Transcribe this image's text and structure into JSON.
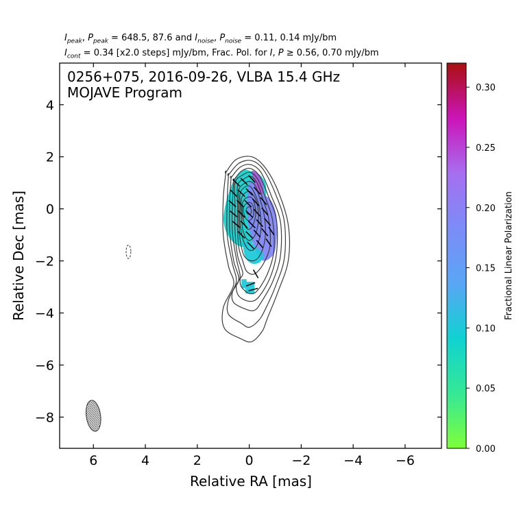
{
  "header": {
    "line1": {
      "i_peak_sym": "I",
      "i_peak_sub": "peak",
      "p_peak_sym": "P",
      "p_peak_sub": "peak",
      "peak_values": "648.5, 87.6",
      "i_noise_sym": "I",
      "i_noise_sub": "noise",
      "p_noise_sym": "P",
      "p_noise_sub": "noise",
      "noise_values": "0.11, 0.14 mJy/bm",
      "sep": ", ",
      "eq": " = ",
      "and": " and "
    },
    "line2": {
      "i_cont_sym": "I",
      "i_cont_sub": "cont",
      "cont_text": " = 0.34 [x2.0 steps] mJy/bm, Frac. Pol. for ",
      "i_sym": "I",
      "p_sym": "P",
      "frac_tail": " ≥ 0.56, 0.70 mJy/bm"
    }
  },
  "chart_data": {
    "type": "heatmap",
    "title_line1": "0256+075, 2016-09-26, VLBA 15.4 GHz",
    "title_line2": "MOJAVE Program",
    "xlabel": "Relative RA [mas]",
    "ylabel": "Relative Dec [mas]",
    "xlim": [
      7.3,
      -7.4
    ],
    "ylim": [
      -9.2,
      5.6
    ],
    "x_ticks": [
      6,
      4,
      2,
      0,
      -2,
      -4,
      -6
    ],
    "y_ticks": [
      4,
      2,
      0,
      -2,
      -4,
      -6,
      -8
    ],
    "x_tick_labels": [
      "6",
      "4",
      "2",
      "0",
      "−2",
      "−4",
      "−6"
    ],
    "y_tick_labels": [
      "4",
      "2",
      "0",
      "−2",
      "−4",
      "−6",
      "−8"
    ],
    "colorbar": {
      "label": "Fractional Linear Polarization",
      "range": [
        0.0,
        0.32
      ],
      "ticks": [
        0.0,
        0.05,
        0.1,
        0.15,
        0.2,
        0.25,
        0.3
      ],
      "tick_labels": [
        "0.00",
        "0.05",
        "0.10",
        "0.15",
        "0.20",
        "0.25",
        "0.30"
      ],
      "colors": [
        "#7fff3a",
        "#35e895",
        "#10d2d2",
        "#5aa6f5",
        "#7c8cf8",
        "#a66ff0",
        "#cc14b8",
        "#aa0f0f"
      ]
    },
    "contours": [
      {
        "level": 1,
        "x": [
          0.9,
          0.5,
          -0.1,
          -0.6,
          -1.1,
          -1.5,
          -1.5,
          -1.1,
          -0.7,
          -0.5,
          -0.1,
          0.3,
          0.95,
          1.0,
          0.6,
          0.8,
          1.0,
          1.0,
          0.9
        ],
        "y": [
          1.4,
          1.9,
          2.0,
          1.6,
          0.7,
          -0.6,
          -2.0,
          -3.2,
          -4.2,
          -4.7,
          -5.1,
          -5.0,
          -4.6,
          -3.8,
          -2.9,
          -2.2,
          -1.0,
          0.4,
          1.4
        ]
      },
      {
        "level": 2,
        "x": [
          0.8,
          0.4,
          -0.1,
          -0.55,
          -1.0,
          -1.35,
          -1.35,
          -1.0,
          -0.6,
          -0.35,
          0.0,
          0.3,
          0.8,
          0.8,
          0.5,
          0.65,
          0.85,
          0.85,
          0.8
        ],
        "y": [
          1.3,
          1.75,
          1.85,
          1.5,
          0.6,
          -0.5,
          -1.9,
          -3.0,
          -3.9,
          -4.3,
          -4.55,
          -4.4,
          -4.05,
          -3.5,
          -2.8,
          -2.1,
          -1.0,
          0.3,
          1.3
        ]
      },
      {
        "level": 3,
        "x": [
          0.7,
          0.35,
          -0.05,
          -0.45,
          -0.85,
          -1.2,
          -1.2,
          -0.9,
          -0.45,
          -0.2,
          0.15,
          0.6,
          0.65,
          0.4,
          0.6,
          0.75,
          0.75,
          0.7
        ],
        "y": [
          1.2,
          1.6,
          1.7,
          1.4,
          0.5,
          -0.5,
          -1.8,
          -2.8,
          -3.6,
          -3.9,
          -3.85,
          -3.6,
          -3.2,
          -2.7,
          -2.0,
          -0.9,
          0.3,
          1.2
        ]
      },
      {
        "level": 4,
        "x": [
          0.6,
          0.3,
          -0.05,
          -0.4,
          -0.75,
          -1.05,
          -1.05,
          -0.8,
          -0.35,
          0.0,
          0.4,
          0.5,
          0.35,
          0.5,
          0.65,
          0.65,
          0.6
        ],
        "y": [
          1.1,
          1.45,
          1.55,
          1.25,
          0.45,
          -0.45,
          -1.7,
          -2.65,
          -3.4,
          -3.55,
          -3.35,
          -2.95,
          -2.6,
          -1.9,
          -0.9,
          0.2,
          1.1
        ]
      },
      {
        "level": 5,
        "x": [
          0.55,
          0.25,
          -0.05,
          -0.35,
          -0.65,
          -0.9,
          -0.95,
          -0.7,
          -0.3,
          0.0,
          0.3,
          0.35,
          0.25,
          0.45,
          0.55,
          0.55
        ],
        "y": [
          1.0,
          1.3,
          1.4,
          1.1,
          0.35,
          -0.45,
          -1.6,
          -2.5,
          -3.15,
          -3.25,
          -3.0,
          -2.7,
          -2.45,
          -1.8,
          -0.85,
          0.1
        ]
      },
      {
        "level": 6,
        "x": [
          0.45,
          0.2,
          -0.05,
          -0.3,
          -0.55,
          -0.75,
          -0.8,
          -0.55,
          -0.2,
          0.1,
          0.25,
          0.4,
          0.45,
          0.45
        ],
        "y": [
          0.9,
          1.15,
          1.25,
          1.0,
          0.3,
          -0.4,
          -1.4,
          -2.1,
          -2.5,
          -2.4,
          -2.0,
          -1.5,
          -0.8,
          0.1
        ]
      },
      {
        "level": 7,
        "x": [
          0.4,
          0.15,
          -0.05,
          -0.25,
          -0.45,
          -0.6,
          -0.6,
          -0.4,
          -0.1,
          0.2,
          0.35,
          0.4,
          0.4
        ],
        "y": [
          0.75,
          1.0,
          1.05,
          0.85,
          0.25,
          -0.4,
          -1.2,
          -1.8,
          -2.0,
          -1.8,
          -1.2,
          -0.5,
          0.2
        ]
      },
      {
        "level": 8,
        "x": [
          0.35,
          0.15,
          -0.05,
          -0.25,
          -0.4,
          -0.45,
          -0.3,
          -0.05,
          0.2,
          0.35,
          0.35
        ],
        "y": [
          0.6,
          0.85,
          0.85,
          0.5,
          0.0,
          -0.8,
          -1.4,
          -1.6,
          -1.3,
          -0.6,
          0.1
        ]
      },
      {
        "level": 9,
        "x": [
          0.3,
          0.1,
          -0.1,
          -0.3,
          -0.35,
          -0.2,
          0.05,
          0.25,
          0.3
        ],
        "y": [
          0.4,
          0.65,
          0.6,
          0.2,
          -0.5,
          -1.05,
          -1.2,
          -0.8,
          -0.1
        ]
      },
      {
        "level": 10,
        "x": [
          0.25,
          0.05,
          -0.15,
          -0.25,
          -0.1,
          0.1,
          0.25
        ],
        "y": [
          0.25,
          0.45,
          0.35,
          -0.2,
          -0.7,
          -0.75,
          -0.3
        ]
      },
      {
        "level": 11,
        "x": [
          0.2,
          0.0,
          -0.15,
          -0.15,
          0.05,
          0.2
        ],
        "y": [
          0.1,
          0.25,
          0.1,
          -0.3,
          -0.45,
          -0.2
        ]
      },
      {
        "level": 12,
        "x": [
          0.12,
          0.0,
          -0.08,
          -0.05,
          0.08
        ],
        "y": [
          -0.02,
          0.08,
          -0.05,
          -0.2,
          -0.18
        ]
      }
    ],
    "negative_contour": {
      "x": 4.65,
      "y": -1.65,
      "rx": 0.09,
      "ry": 0.26
    },
    "beam": {
      "x": 6.0,
      "y": -7.95,
      "major": 1.2,
      "minor": 0.55
    },
    "polarization_patches": [
      {
        "x": [
          0.2,
          0.6,
          0.95,
          0.95,
          0.6,
          0.1,
          -0.35,
          -0.55,
          -0.65,
          -0.6,
          -0.35,
          -0.05,
          0.1
        ],
        "y": [
          1.5,
          1.1,
          0.0,
          -0.7,
          -1.3,
          -1.45,
          -1.0,
          -0.3,
          0.6,
          1.05,
          1.35,
          1.45,
          1.5
        ],
        "frac": 0.09
      },
      {
        "x": [
          0.0,
          0.05,
          -0.4,
          -0.9,
          -1.05,
          -1.05,
          -0.85,
          -0.5
        ],
        "y": [
          1.0,
          -0.5,
          -1.9,
          -1.8,
          -1.2,
          -0.3,
          0.3,
          0.6
        ],
        "frac": 0.19
      },
      {
        "x": [
          -0.1,
          -0.45,
          -0.55,
          -0.3
        ],
        "y": [
          1.45,
          1.2,
          0.6,
          0.7
        ],
        "frac": 0.24
      },
      {
        "x": [
          0.25,
          0.15,
          -0.1,
          -0.4,
          -0.55,
          -0.3,
          -0.1,
          0.1
        ],
        "y": [
          -1.3,
          -1.85,
          -2.1,
          -2.05,
          -1.75,
          -1.5,
          -1.3,
          -1.25
        ],
        "frac": 0.1
      },
      {
        "x": [
          0.3,
          0.3,
          0.15,
          0.15,
          -0.2,
          -0.2,
          0.1,
          0.1,
          0.3
        ],
        "y": [
          -2.7,
          -3.05,
          -3.05,
          -3.25,
          -3.25,
          -2.8,
          -2.8,
          -2.7,
          -2.7
        ],
        "frac": 0.1
      }
    ],
    "evpa_vectors": [
      {
        "x": 0.5,
        "y": 1.0,
        "angle": -45
      },
      {
        "x": 0.2,
        "y": 1.05,
        "angle": -45
      },
      {
        "x": -0.1,
        "y": 1.15,
        "angle": -48
      },
      {
        "x": 0.6,
        "y": 0.6,
        "angle": -45
      },
      {
        "x": 0.3,
        "y": 0.6,
        "angle": -45
      },
      {
        "x": 0.0,
        "y": 0.65,
        "angle": -45
      },
      {
        "x": -0.3,
        "y": 0.7,
        "angle": -48
      },
      {
        "x": 0.65,
        "y": 0.2,
        "angle": -42
      },
      {
        "x": 0.35,
        "y": 0.2,
        "angle": -45
      },
      {
        "x": 0.05,
        "y": 0.2,
        "angle": -45
      },
      {
        "x": -0.25,
        "y": 0.25,
        "angle": -48
      },
      {
        "x": -0.55,
        "y": 0.3,
        "angle": -50
      },
      {
        "x": 0.6,
        "y": -0.2,
        "angle": -40
      },
      {
        "x": 0.3,
        "y": -0.2,
        "angle": -45
      },
      {
        "x": 0.0,
        "y": -0.2,
        "angle": -45
      },
      {
        "x": -0.3,
        "y": -0.15,
        "angle": -48
      },
      {
        "x": -0.6,
        "y": -0.1,
        "angle": -50
      },
      {
        "x": 0.5,
        "y": -0.6,
        "angle": -40
      },
      {
        "x": 0.2,
        "y": -0.6,
        "angle": -45
      },
      {
        "x": -0.1,
        "y": -0.6,
        "angle": -45
      },
      {
        "x": -0.4,
        "y": -0.55,
        "angle": -48
      },
      {
        "x": -0.7,
        "y": -0.5,
        "angle": -50
      },
      {
        "x": 0.3,
        "y": -1.0,
        "angle": -45
      },
      {
        "x": 0.0,
        "y": -1.0,
        "angle": -45
      },
      {
        "x": -0.3,
        "y": -0.95,
        "angle": -48
      },
      {
        "x": -0.6,
        "y": -0.9,
        "angle": -50
      },
      {
        "x": -0.85,
        "y": -0.85,
        "angle": -55
      },
      {
        "x": -0.05,
        "y": -1.4,
        "angle": -45
      },
      {
        "x": -0.4,
        "y": -1.35,
        "angle": -50
      },
      {
        "x": -0.75,
        "y": -1.3,
        "angle": -55
      },
      {
        "x": -0.25,
        "y": -2.5,
        "angle": -60
      },
      {
        "x": -0.05,
        "y": -2.9,
        "angle": 20
      },
      {
        "x": -0.15,
        "y": -3.1,
        "angle": 15
      }
    ]
  }
}
